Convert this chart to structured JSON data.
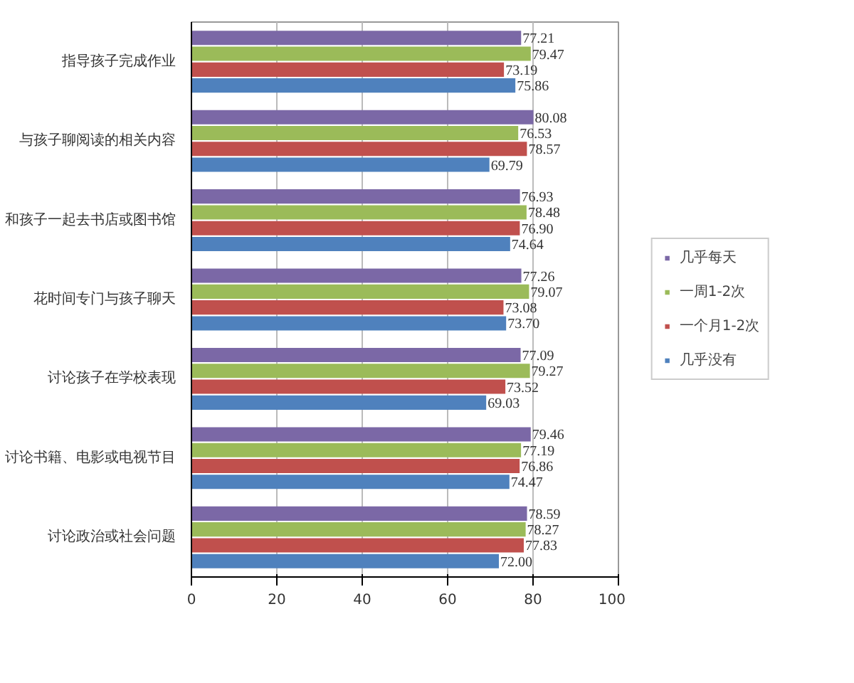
{
  "chart_data": {
    "type": "bar",
    "orientation": "horizontal",
    "categories": [
      "指导孩子完成作业",
      "与孩子聊阅读的相关内容",
      "和孩子一起去书店或图书馆",
      "花时间专门与孩子聊天",
      "讨论孩子在学校表现",
      "讨论书籍、电影或电视节目",
      "讨论政治或社会问题"
    ],
    "series": [
      {
        "name": "几乎每天",
        "color": "#7b68a6",
        "values": [
          77.21,
          80.08,
          76.93,
          77.26,
          77.09,
          79.46,
          78.59
        ],
        "value_labels": [
          "77.21",
          "80.08",
          "76.93",
          "77.26",
          "77.09",
          "79.46",
          "78.59"
        ]
      },
      {
        "name": "一周1-2次",
        "color": "#9bbb59",
        "values": [
          79.47,
          76.53,
          78.48,
          79.07,
          79.27,
          77.19,
          78.27
        ],
        "value_labels": [
          "79.47",
          "76.53",
          "78.48",
          "79.07",
          "79.27",
          "77.19",
          "78.27"
        ]
      },
      {
        "name": "一个月1-2次",
        "color": "#c0504d",
        "values": [
          73.19,
          78.57,
          76.9,
          73.08,
          73.52,
          76.86,
          77.83
        ],
        "value_labels": [
          "73.19",
          "78.57",
          "76.90",
          "73.08",
          "73.52",
          "76.86",
          "77.83"
        ]
      },
      {
        "name": "几乎没有",
        "color": "#4f81bd",
        "values": [
          75.86,
          69.79,
          74.64,
          73.7,
          69.03,
          74.47,
          72.0
        ],
        "value_labels": [
          "75.86",
          "69.79",
          "74.64",
          "73.70",
          "69.03",
          "74.47",
          "72.00"
        ]
      }
    ],
    "xlim": [
      0,
      100
    ],
    "xticks": [
      0,
      20,
      40,
      60,
      80,
      100
    ],
    "grid": "x",
    "legend": "right",
    "data_labels": true
  }
}
